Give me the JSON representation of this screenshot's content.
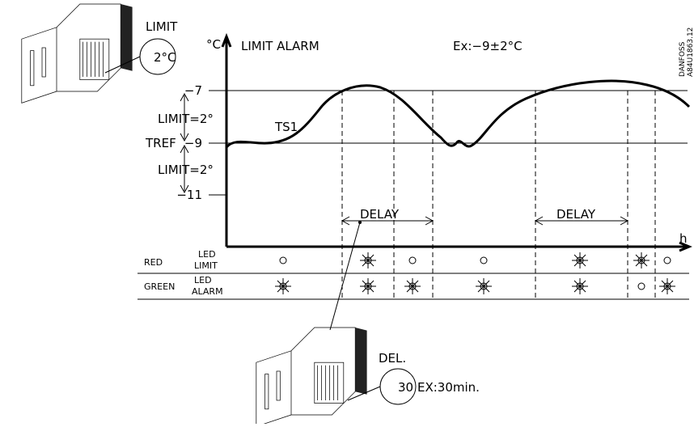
{
  "header": {
    "unit": "°C",
    "title": "LIMIT  ALARM",
    "example": "Ex:−9±2°C",
    "maker": "DANFOSS",
    "code": "A84U1863.12"
  },
  "axis": {
    "levels": [
      "−7",
      "−9",
      "−11"
    ],
    "x_unit": "h",
    "ref": "TREF",
    "sensor": "TS1"
  },
  "limits": [
    "LIMIT=2°",
    "LIMIT=2°"
  ],
  "delays": [
    "DELAY",
    "DELAY"
  ],
  "rows": [
    {
      "color": "RED",
      "led": "LED",
      "name": "LIMIT"
    },
    {
      "color": "GREEN",
      "led": "LED",
      "name": "ALARM"
    }
  ],
  "device_top": {
    "label": "LIMIT",
    "setting": "2°C"
  },
  "device_bottom": {
    "label": "DEL.",
    "setting": "30",
    "example": "EX:30min."
  }
}
